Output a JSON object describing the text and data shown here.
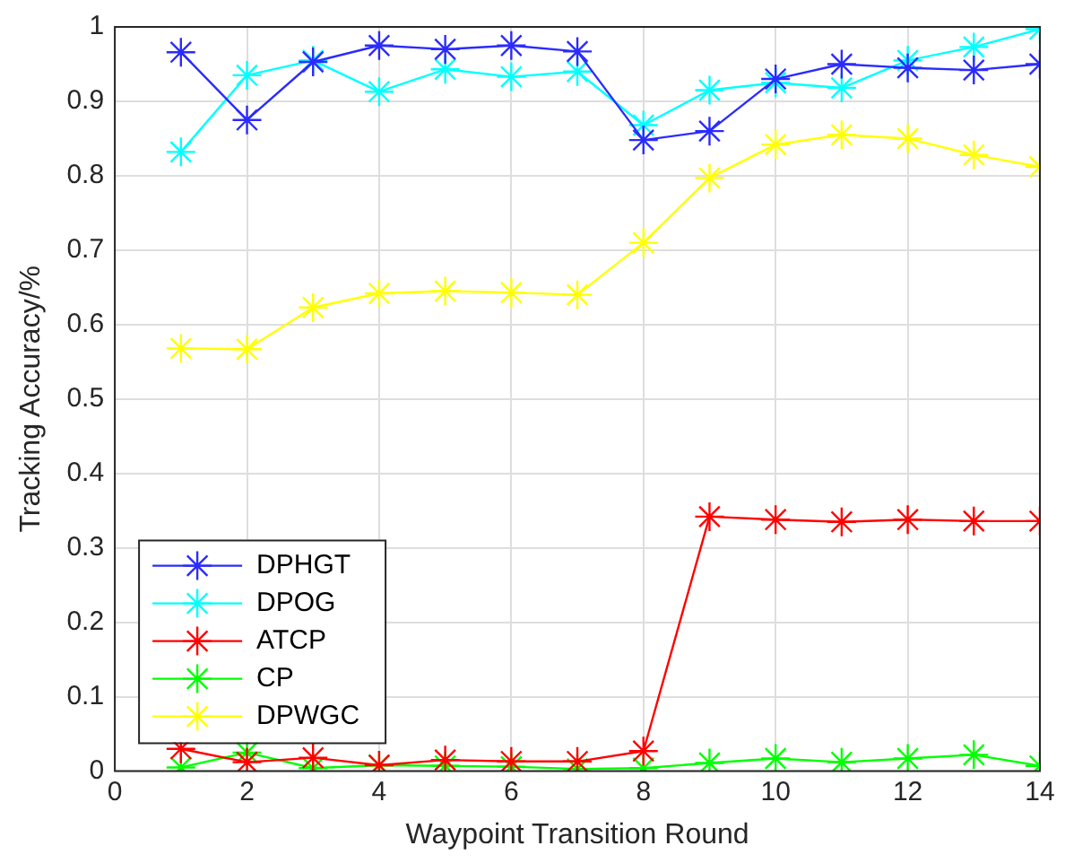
{
  "chart_data": {
    "type": "line",
    "xlabel": "Waypoint Transition Round",
    "ylabel": "Tracking Accuracy/%",
    "x": [
      1,
      2,
      3,
      4,
      5,
      6,
      7,
      8,
      9,
      10,
      11,
      12,
      13,
      14
    ],
    "series": [
      {
        "name": "DPHGT",
        "color": "#2b2bff",
        "values": [
          0.966,
          0.875,
          0.953,
          0.975,
          0.97,
          0.975,
          0.967,
          0.848,
          0.86,
          0.93,
          0.95,
          0.945,
          0.942,
          0.95
        ]
      },
      {
        "name": "DPOG",
        "color": "#00ffff",
        "values": [
          0.832,
          0.935,
          0.955,
          0.913,
          0.943,
          0.933,
          0.94,
          0.868,
          0.915,
          0.925,
          0.918,
          0.955,
          0.973,
          0.997
        ]
      },
      {
        "name": "ATCP",
        "color": "#ff0000",
        "values": [
          0.03,
          0.012,
          0.018,
          0.008,
          0.015,
          0.013,
          0.013,
          0.027,
          0.342,
          0.338,
          0.335,
          0.338,
          0.336,
          0.336
        ]
      },
      {
        "name": "CP",
        "color": "#00ff00",
        "values": [
          0.005,
          0.025,
          0.004,
          0.008,
          0.007,
          0.006,
          0.003,
          0.004,
          0.011,
          0.017,
          0.012,
          0.017,
          0.022,
          0.007
        ]
      },
      {
        "name": "DPWGC",
        "color": "#ffff00",
        "values": [
          0.568,
          0.567,
          0.623,
          0.642,
          0.645,
          0.643,
          0.64,
          0.71,
          0.797,
          0.842,
          0.855,
          0.85,
          0.828,
          0.812
        ]
      }
    ],
    "xlim": [
      0,
      14
    ],
    "xticks": [
      0,
      2,
      4,
      6,
      8,
      10,
      12,
      14
    ],
    "ylim": [
      0,
      1
    ],
    "yticks": [
      0,
      0.1,
      0.2,
      0.3,
      0.4,
      0.5,
      0.6,
      0.7,
      0.8,
      0.9,
      1
    ],
    "grid": true,
    "legend": "bottom left",
    "marker": "cross",
    "line_style": "solid"
  }
}
